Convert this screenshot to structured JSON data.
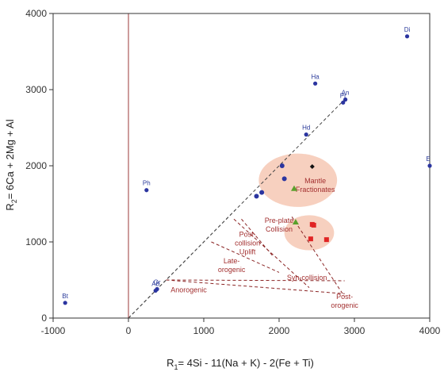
{
  "chart_data": {
    "type": "scatter",
    "title": "",
    "xlabel": "R1= 4Si - 11(Na + K) - 2(Fe + Ti)",
    "xlabel_parts": {
      "base": "R",
      "sub": "1",
      "rest": "= 4Si - 11(Na + K) - 2(Fe + Ti)"
    },
    "ylabel": "R2= 6Ca + 2Mg + Al",
    "ylabel_parts": {
      "base": "R",
      "sub": "2",
      "rest": "= 6Ca + 2Mg + Al"
    },
    "xlim": [
      -1000,
      4000
    ],
    "ylim": [
      0,
      4000
    ],
    "xticks": [
      -1000,
      0,
      1000,
      2000,
      3000,
      4000
    ],
    "yticks": [
      0,
      1000,
      2000,
      3000,
      4000
    ],
    "grid": false,
    "legend": "none",
    "colors": {
      "mineral": "#2b35a0",
      "region_line": "#8b2525",
      "region_text": "#a33030",
      "ellipse_fill": "#f6c8b4",
      "red_sample": "#e02424",
      "green_sample": "#5aa02c",
      "vertical_line": "#9b3a3a"
    },
    "reference_points": [
      {
        "label": "Di",
        "x": 3700,
        "y": 3700
      },
      {
        "label": "Ha",
        "x": 2480,
        "y": 3080
      },
      {
        "label": "An",
        "x": 2880,
        "y": 2870
      },
      {
        "label": "Pr",
        "x": 2850,
        "y": 2830
      },
      {
        "label": "Hd",
        "x": 2360,
        "y": 2410
      },
      {
        "label": "Ph",
        "x": 240,
        "y": 1680
      },
      {
        "label": "E",
        "x": 4000,
        "y": 2000
      },
      {
        "label": "Or",
        "x": 380,
        "y": 380
      },
      {
        "label": "Ab",
        "x": 360,
        "y": 360
      },
      {
        "label": "Bt",
        "x": -840,
        "y": 200
      }
    ],
    "samples_blue": [
      {
        "x": 2040,
        "y": 2000
      },
      {
        "x": 2070,
        "y": 1830
      },
      {
        "x": 1770,
        "y": 1650
      },
      {
        "x": 1700,
        "y": 1600
      }
    ],
    "samples_black": [
      {
        "x": 2440,
        "y": 1990
      }
    ],
    "samples_green": [
      {
        "x": 2200,
        "y": 1700
      },
      {
        "x": 2220,
        "y": 1260
      }
    ],
    "samples_red": [
      {
        "x": 2440,
        "y": 1230
      },
      {
        "x": 2460,
        "y": 1220
      },
      {
        "x": 2420,
        "y": 1040
      },
      {
        "x": 2630,
        "y": 1030
      }
    ],
    "regions": [
      {
        "name": "mantle",
        "lines": [
          "Mantle",
          "Fractionates"
        ],
        "x": 2480,
        "y": 1770
      },
      {
        "name": "pre-plate",
        "lines": [
          "Pre-plate",
          "Collision"
        ],
        "x": 2000,
        "y": 1250
      },
      {
        "name": "post-collision",
        "lines": [
          "Post-",
          "collision",
          "Uplift"
        ],
        "x": 1580,
        "y": 1070
      },
      {
        "name": "late-orogenic",
        "lines": [
          "Late-",
          "orogenic"
        ],
        "x": 1370,
        "y": 720
      },
      {
        "name": "syn-collision",
        "lines": [
          "Syn-collision"
        ],
        "x": 2370,
        "y": 500
      },
      {
        "name": "anorogenic",
        "lines": [
          "Anorogenic"
        ],
        "x": 800,
        "y": 340
      },
      {
        "name": "post-orogenic",
        "lines": [
          "Post-",
          "orogenic"
        ],
        "x": 2870,
        "y": 250
      }
    ],
    "ellipses": [
      {
        "name": "mantle-fractionates",
        "cx": 2250,
        "cy": 1810,
        "rx": 520,
        "ry": 350
      },
      {
        "name": "pre-plate-collision",
        "cx": 2400,
        "cy": 1120,
        "rx": 330,
        "ry": 230
      }
    ],
    "boundary_lines": [
      [
        [
          0,
          0
        ],
        [
          2900,
          2900
        ]
      ],
      [
        [
          0,
          0
        ],
        [
          1450,
          1450
        ]
      ],
      [
        [
          1100,
          1000
        ],
        [
          2000,
          600
        ]
      ],
      [
        [
          1400,
          1300
        ],
        [
          2400,
          400
        ]
      ],
      [
        [
          1500,
          1300
        ],
        [
          1930,
          800
        ]
      ],
      [
        [
          500,
          500
        ],
        [
          2870,
          320
        ]
      ],
      [
        [
          500,
          500
        ],
        [
          2870,
          490
        ]
      ],
      [
        [
          2170,
          1330
        ],
        [
          2870,
          280
        ]
      ]
    ],
    "vertical_line_x": 0
  }
}
